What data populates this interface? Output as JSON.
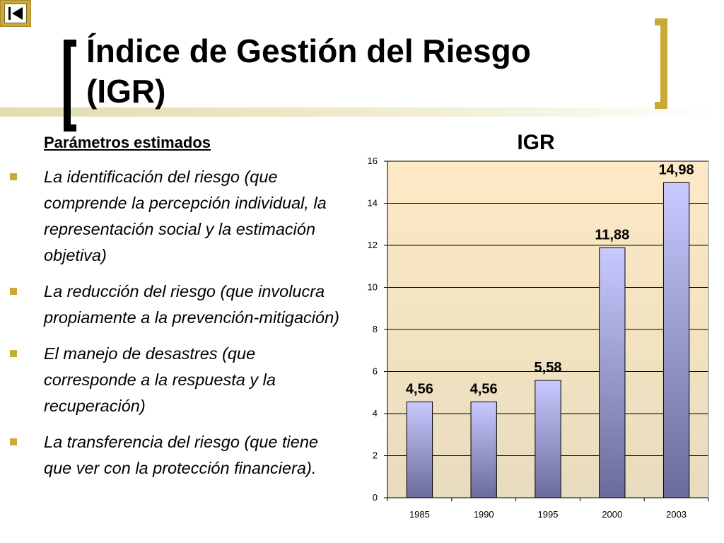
{
  "slide": {
    "title_line1": "Índice de Gestión del Riesgo",
    "title_line2": "(IGR)",
    "subtitle": "Parámetros estimados",
    "bullets": [
      "La identificación del riesgo (que comprende la percepción individual, la representación social y la estimación objetiva)",
      "La reducción del riesgo (que involucra propiamente a la prevención-mitigación)",
      "El manejo de desastres (que corresponde a la respuesta y la recuperación)",
      "La transferencia del riesgo (que tiene que ver con la protección financiera)."
    ]
  },
  "colors": {
    "accent": "#c9aa36",
    "plot_background_top": "#fde9c4",
    "plot_background_bottom": "#e8dcbe",
    "bar_top": "#c9c9ff",
    "bar_bottom": "#6a6a9c"
  },
  "icons": {
    "nav": "skip-back-icon"
  },
  "chart_data": {
    "type": "bar",
    "title": "IGR",
    "categories": [
      "1985",
      "1990",
      "1995",
      "2000",
      "2003"
    ],
    "values": [
      4.56,
      4.56,
      5.58,
      11.88,
      14.98
    ],
    "data_labels": [
      "4,56",
      "4,56",
      "5,58",
      "11,88",
      "14,98"
    ],
    "ylim": [
      0,
      16
    ],
    "yticks": [
      0,
      2,
      4,
      6,
      8,
      10,
      12,
      14,
      16
    ],
    "grid": true,
    "legend": false,
    "xlabel": "",
    "ylabel": ""
  }
}
